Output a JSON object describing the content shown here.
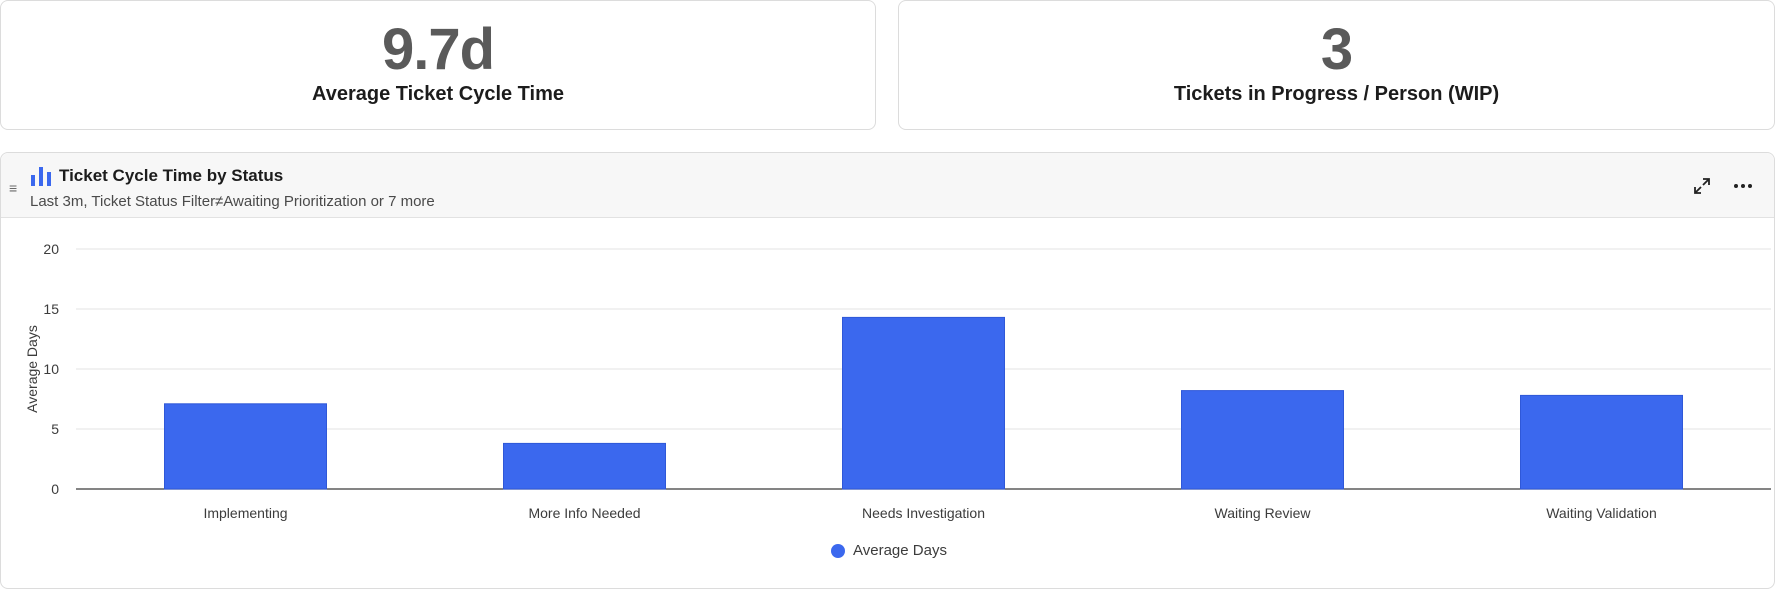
{
  "kpis": [
    {
      "value": "9.7d",
      "label": "Average Ticket Cycle Time"
    },
    {
      "value": "3",
      "label": "Tickets in Progress / Person (WIP)"
    }
  ],
  "chart_panel": {
    "title": "Ticket Cycle Time by Status",
    "subtitle": "Last 3m, Ticket Status Filter≠Awaiting Prioritization or 7 more",
    "icons": {
      "drag": "drag-handle-icon",
      "type": "bar-chart-icon",
      "expand": "expand-icon",
      "more": "more-options-icon"
    }
  },
  "chart_data": {
    "type": "bar",
    "categories": [
      "Implementing",
      "More Info Needed",
      "Needs Investigation",
      "Waiting Review",
      "Waiting Validation"
    ],
    "series": [
      {
        "name": "Average Days",
        "values": [
          7.1,
          3.8,
          14.3,
          8.2,
          7.8
        ]
      }
    ],
    "xlabel": "",
    "ylabel": "Average Days",
    "ylim": [
      0,
      20
    ],
    "yticks": [
      0,
      5,
      10,
      15,
      20
    ],
    "grid": true,
    "legend": "bottom-center",
    "colors": {
      "bar": "#3b68ee",
      "grid": "#e3e3e3",
      "axis": "#3a3a3a"
    }
  }
}
